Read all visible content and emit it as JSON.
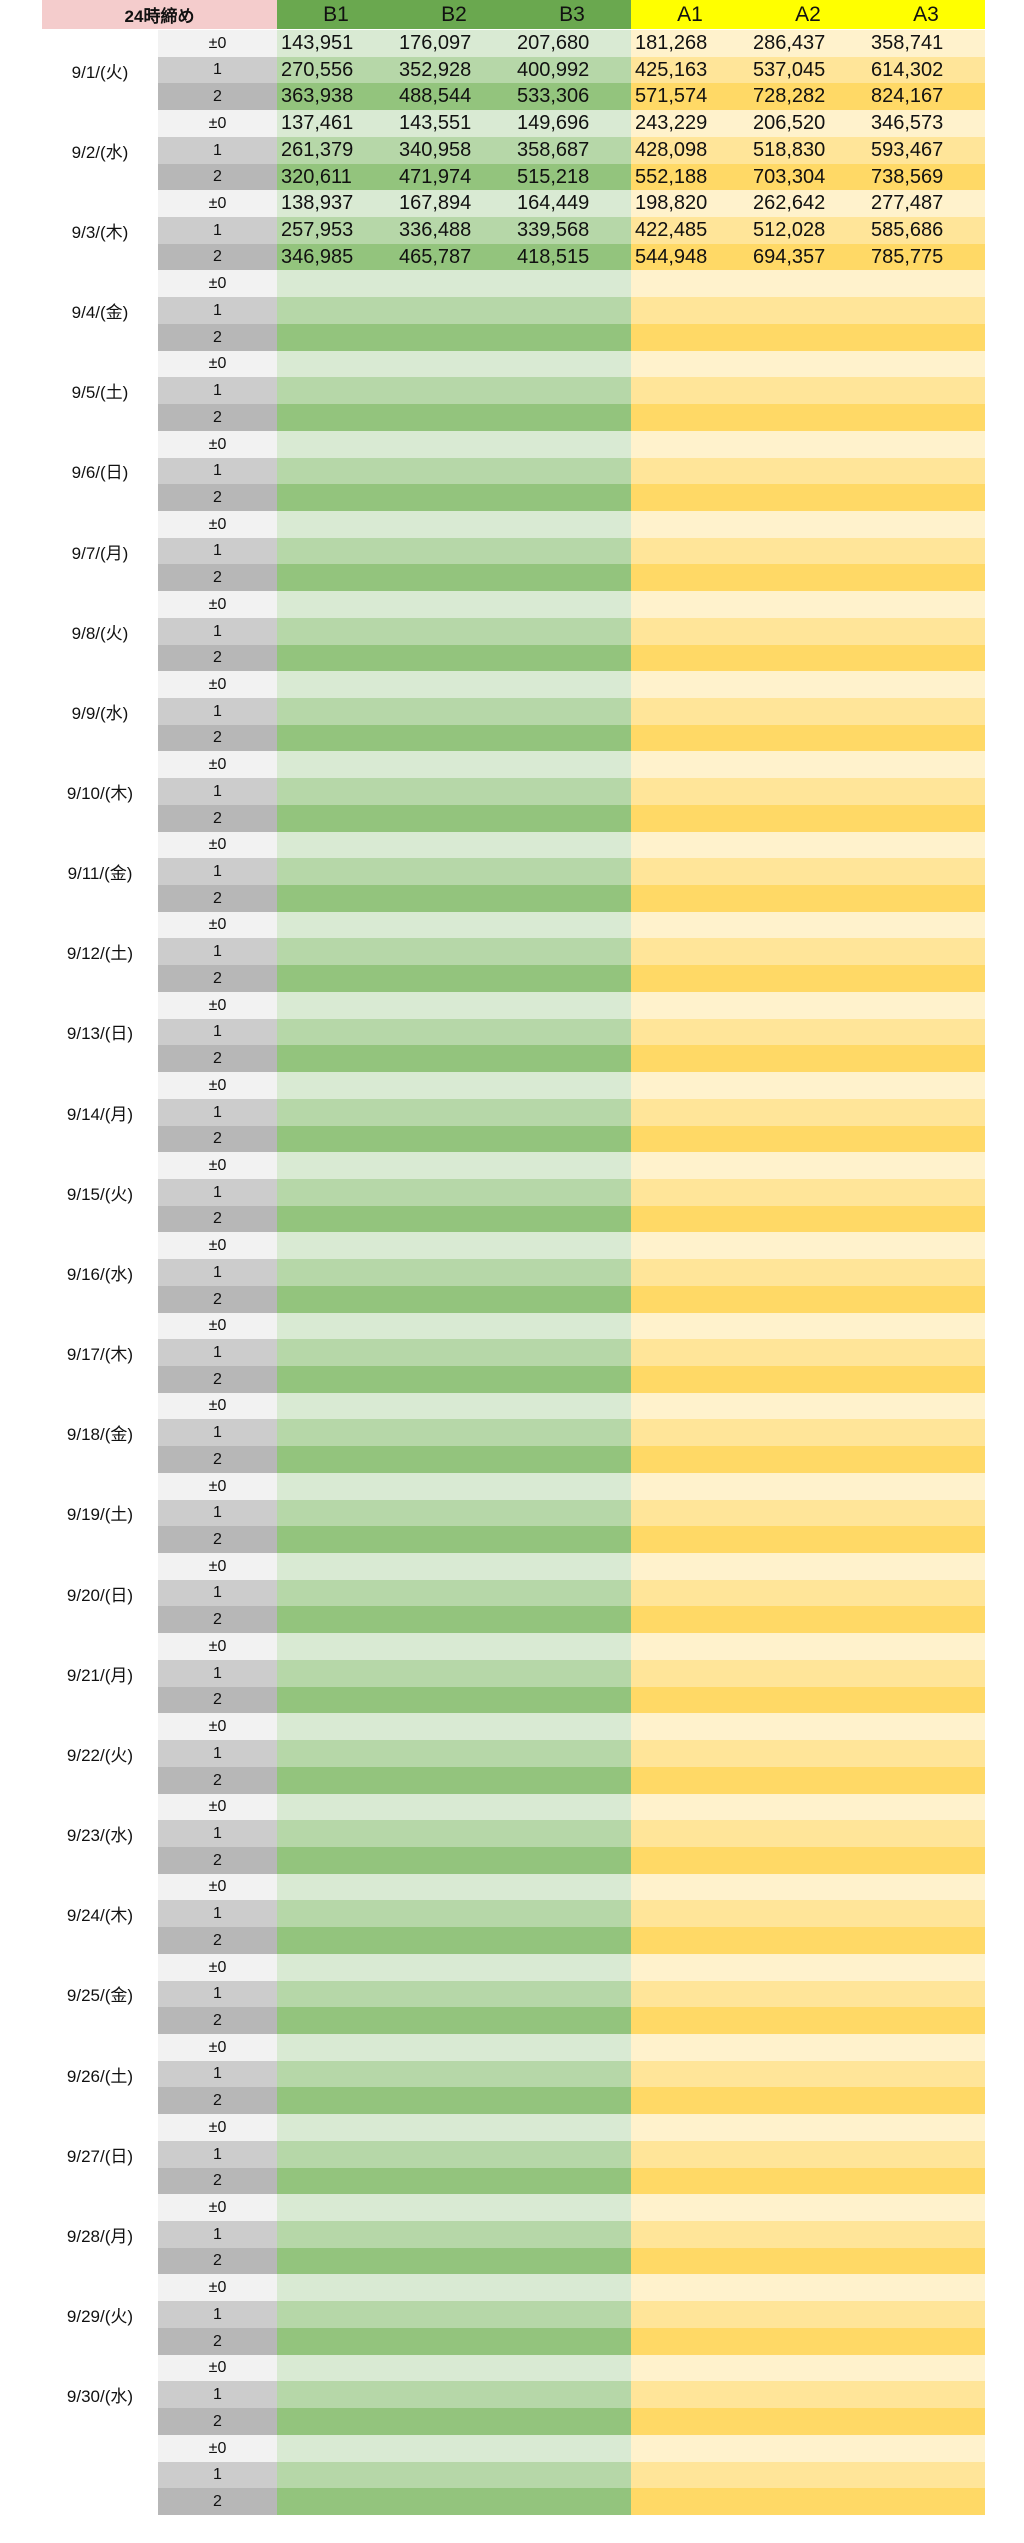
{
  "sheet": {
    "corner_label": "24時締め",
    "columns": [
      "B1",
      "B2",
      "B3",
      "A1",
      "A2",
      "A3"
    ],
    "levels": [
      "±0",
      "1",
      "2"
    ],
    "days": [
      {
        "date": "9/1/(火)",
        "rows": [
          [
            "143,951",
            "176,097",
            "207,680",
            "181,268",
            "286,437",
            "358,741"
          ],
          [
            "270,556",
            "352,928",
            "400,992",
            "425,163",
            "537,045",
            "614,302"
          ],
          [
            "363,938",
            "488,544",
            "533,306",
            "571,574",
            "728,282",
            "824,167"
          ]
        ]
      },
      {
        "date": "9/2/(水)",
        "rows": [
          [
            "137,461",
            "143,551",
            "149,696",
            "243,229",
            "206,520",
            "346,573"
          ],
          [
            "261,379",
            "340,958",
            "358,687",
            "428,098",
            "518,830",
            "593,467"
          ],
          [
            "320,611",
            "471,974",
            "515,218",
            "552,188",
            "703,304",
            "738,569"
          ]
        ]
      },
      {
        "date": "9/3/(木)",
        "rows": [
          [
            "138,937",
            "167,894",
            "164,449",
            "198,820",
            "262,642",
            "277,487"
          ],
          [
            "257,953",
            "336,488",
            "339,568",
            "422,485",
            "512,028",
            "585,686"
          ],
          [
            "346,985",
            "465,787",
            "418,515",
            "544,948",
            "694,357",
            "785,775"
          ]
        ]
      },
      {
        "date": "9/4/(金)",
        "rows": []
      },
      {
        "date": "9/5/(土)",
        "rows": []
      },
      {
        "date": "9/6/(日)",
        "rows": []
      },
      {
        "date": "9/7/(月)",
        "rows": []
      },
      {
        "date": "9/8/(火)",
        "rows": []
      },
      {
        "date": "9/9/(水)",
        "rows": []
      },
      {
        "date": "9/10/(木)",
        "rows": []
      },
      {
        "date": "9/11/(金)",
        "rows": []
      },
      {
        "date": "9/12/(土)",
        "rows": []
      },
      {
        "date": "9/13/(日)",
        "rows": []
      },
      {
        "date": "9/14/(月)",
        "rows": []
      },
      {
        "date": "9/15/(火)",
        "rows": []
      },
      {
        "date": "9/16/(水)",
        "rows": []
      },
      {
        "date": "9/17/(木)",
        "rows": []
      },
      {
        "date": "9/18/(金)",
        "rows": []
      },
      {
        "date": "9/19/(土)",
        "rows": []
      },
      {
        "date": "9/20/(日)",
        "rows": []
      },
      {
        "date": "9/21/(月)",
        "rows": []
      },
      {
        "date": "9/22/(火)",
        "rows": []
      },
      {
        "date": "9/23/(水)",
        "rows": []
      },
      {
        "date": "9/24/(木)",
        "rows": []
      },
      {
        "date": "9/25/(金)",
        "rows": []
      },
      {
        "date": "9/26/(土)",
        "rows": []
      },
      {
        "date": "9/27/(日)",
        "rows": []
      },
      {
        "date": "9/28/(月)",
        "rows": []
      },
      {
        "date": "9/29/(火)",
        "rows": []
      },
      {
        "date": "9/30/(水)",
        "rows": []
      },
      {
        "date": "",
        "rows": []
      }
    ]
  }
}
